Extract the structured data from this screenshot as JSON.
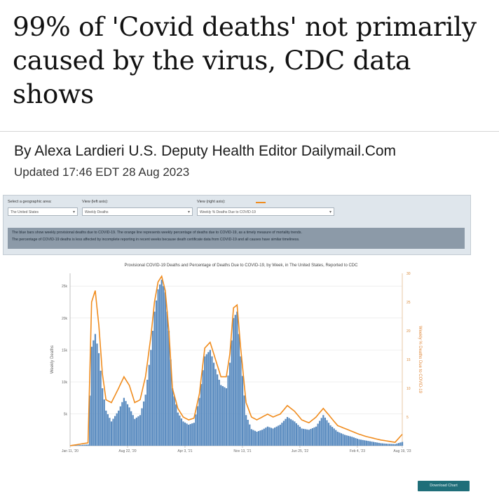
{
  "article": {
    "headline_line1": "99% of 'Covid deaths' not primarily",
    "headline_line2": "caused by the virus, CDC data",
    "headline_line3": "shows",
    "byline": "By Alexa Lardieri U.S. Deputy Health Editor Dailymail.Com",
    "updated": "Updated 17:46 EDT 28 Aug 2023"
  },
  "widget": {
    "geo_label": "Select a geographic area:",
    "geo_value": "The United States",
    "left_axis_label": "View (left axis):",
    "left_axis_value": "Weekly Deaths",
    "right_axis_label": "View (right axis):",
    "right_axis_value": "Weekly % Deaths Due to COVID-19",
    "note_line1": "The blue bars show weekly provisional deaths due to COVID-19. The orange line represents weekly percentage of deaths due to COVID-19, as a timely measure of mortality trends.",
    "note_line2": "The percentage of COVID-19 deaths is less affected by incomplete reporting in recent weeks because death certificate data from COVID-19 and all causes have similar timeliness.",
    "download_label": "Download Chart",
    "colors": {
      "bars": "#5b8cc0",
      "line": "#f08c1e",
      "panel": "#dfe6ec",
      "note": "#8c9aa8",
      "button": "#1f6e79"
    }
  },
  "chart_data": {
    "type": "bar",
    "title": "Provisional COVID-19 Deaths and Percentage of Deaths Due to COVID-19, by Week, in The United States, Reported to CDC",
    "ylabel": "Weekly Deaths",
    "y2label": "Weekly % Deaths Due to COVID-19",
    "x_ticks": [
      "Jan 11, '20",
      "Aug 22, '20",
      "Apr 3, '21",
      "Nov 13, '21",
      "Jun 25, '22",
      "Feb 4, '23",
      "Aug 19, '23"
    ],
    "y_ticks": [
      "",
      "5k",
      "10k",
      "15k",
      "20k",
      "25k"
    ],
    "y2_ticks": [
      "",
      "5",
      "10",
      "15",
      "20",
      "25",
      "30"
    ],
    "ylim": [
      0,
      27000
    ],
    "y2lim": [
      0,
      30
    ],
    "x_weeks": [
      0,
      10,
      12,
      14,
      16,
      18,
      20,
      23,
      27,
      30,
      33,
      36,
      39,
      42,
      45,
      47,
      49,
      51,
      53,
      55,
      57,
      60,
      63,
      66,
      69,
      72,
      75,
      78,
      81,
      84,
      87,
      89,
      91,
      93,
      95,
      98,
      101,
      104,
      107,
      110,
      113,
      117,
      121,
      125,
      129,
      133,
      137,
      141,
      145,
      149,
      153,
      157,
      161,
      165,
      169,
      173,
      177,
      181,
      185
    ],
    "series": [
      {
        "kind": "bar",
        "values": [
          0,
          200,
          15500,
          17500,
          14500,
          9000,
          5500,
          3800,
          5500,
          7500,
          6000,
          4200,
          4800,
          8000,
          15000,
          21000,
          24500,
          26000,
          24000,
          18000,
          9000,
          5200,
          3800,
          3300,
          3600,
          7500,
          14000,
          15000,
          12000,
          9500,
          9000,
          13000,
          20000,
          21000,
          14000,
          4800,
          2600,
          2200,
          2500,
          3000,
          2700,
          3300,
          4500,
          3800,
          2700,
          2500,
          3000,
          4800,
          3200,
          2200,
          1700,
          1400,
          1000,
          800,
          600,
          400,
          300,
          250,
          600
        ]
      },
      {
        "kind": "line",
        "values": [
          0,
          0.5,
          25,
          27,
          21,
          12.5,
          8,
          7.5,
          10,
          12,
          10.5,
          7.5,
          8,
          12,
          19,
          25,
          28.5,
          29.5,
          27,
          20,
          10,
          6.5,
          5,
          4.5,
          4.8,
          9,
          17,
          18,
          15,
          12,
          12,
          16,
          24,
          24.5,
          17,
          7.5,
          5,
          4.5,
          5,
          5.5,
          5,
          5.5,
          7,
          6,
          4.5,
          4,
          5,
          6.5,
          5,
          3.5,
          3,
          2.5,
          2,
          1.6,
          1.3,
          1,
          0.8,
          0.6,
          2
        ]
      }
    ]
  }
}
